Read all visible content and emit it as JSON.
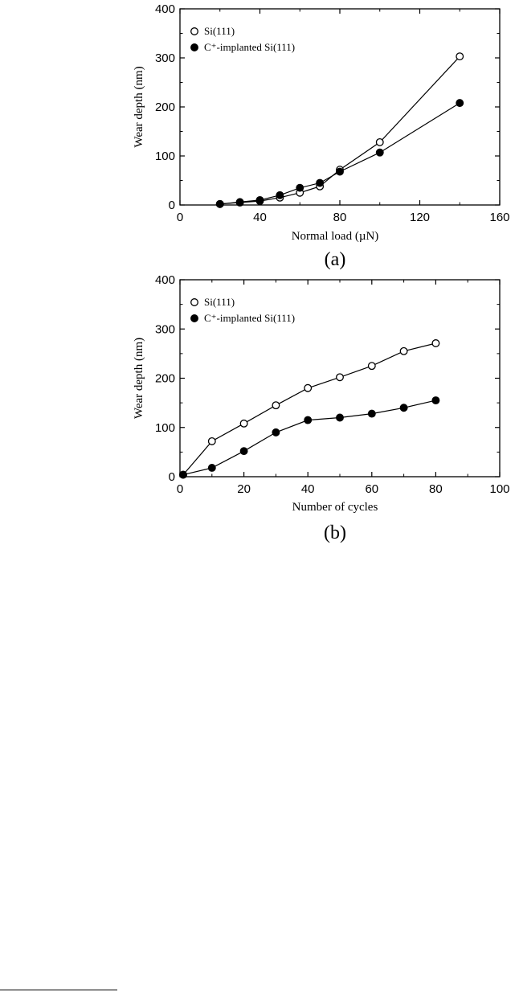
{
  "chart_data": [
    {
      "type": "line",
      "panel_label": "(a)",
      "xlabel": "Normal load (µN)",
      "ylabel": "Wear depth (nm)",
      "xlim": [
        0,
        160
      ],
      "ylim": [
        0,
        400
      ],
      "xticks": [
        "0",
        "40",
        "80",
        "120",
        "160"
      ],
      "yticks": [
        "0",
        "100",
        "200",
        "300",
        "400"
      ],
      "legend_position": "top-left",
      "series": [
        {
          "name": "Si(111)",
          "marker": "open-circle",
          "x": [
            20,
            30,
            40,
            50,
            60,
            70,
            80,
            100,
            140
          ],
          "y": [
            2,
            5,
            8,
            15,
            25,
            38,
            72,
            128,
            303
          ]
        },
        {
          "name": "C⁺-implanted Si(111)",
          "marker": "filled-circle",
          "x": [
            20,
            30,
            40,
            50,
            60,
            70,
            80,
            100,
            140
          ],
          "y": [
            2,
            6,
            10,
            20,
            35,
            45,
            68,
            107,
            208
          ]
        }
      ]
    },
    {
      "type": "line",
      "panel_label": "(b)",
      "xlabel": "Number of cycles",
      "ylabel": "Wear depth (nm)",
      "xlim": [
        0,
        100
      ],
      "ylim": [
        0,
        400
      ],
      "xticks": [
        "0",
        "20",
        "40",
        "60",
        "80",
        "100"
      ],
      "yticks": [
        "0",
        "100",
        "200",
        "300",
        "400"
      ],
      "legend_position": "top-left",
      "series": [
        {
          "name": "Si(111)",
          "marker": "open-circle",
          "x": [
            1,
            10,
            20,
            30,
            40,
            50,
            60,
            70,
            80
          ],
          "y": [
            4,
            72,
            108,
            145,
            180,
            202,
            225,
            255,
            271
          ]
        },
        {
          "name": "C⁺-implanted Si(111)",
          "marker": "filled-circle",
          "x": [
            1,
            10,
            20,
            30,
            40,
            50,
            60,
            70,
            80
          ],
          "y": [
            4,
            18,
            52,
            90,
            115,
            120,
            128,
            140,
            155
          ]
        }
      ]
    }
  ]
}
